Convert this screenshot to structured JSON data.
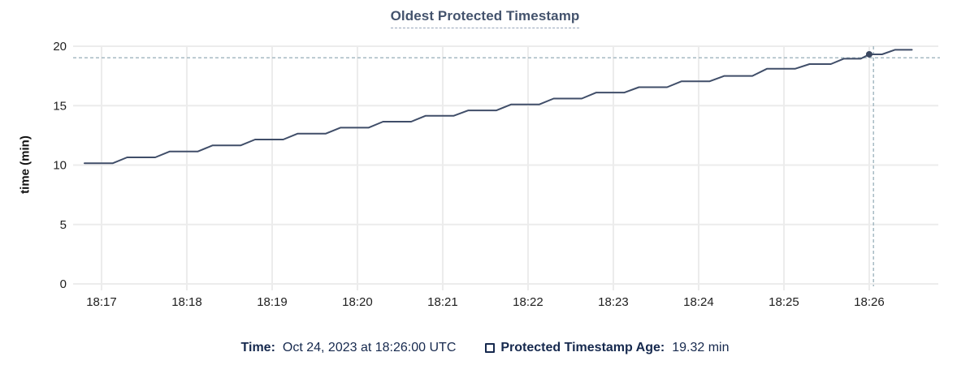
{
  "title": "Oldest Protected Timestamp",
  "colors": {
    "line": "#404e69",
    "point": "#3a4760",
    "grid": "#ececec",
    "crosshair": "#a6bac3",
    "tick_text": "#1e1e1e",
    "title_text": "#44536d",
    "legend_text": "#16294e"
  },
  "legend": {
    "time_label": "Time:",
    "time_value": "Oct 24, 2023 at 18:26:00 UTC",
    "series_label": "Protected Timestamp Age:",
    "series_value": "19.32 min"
  },
  "chart_data": {
    "type": "line",
    "title": "Oldest Protected Timestamp",
    "xlabel": "",
    "ylabel": "time (min)",
    "grid": true,
    "ylim": [
      0,
      20
    ],
    "y_ticks": [
      0,
      5,
      10,
      15,
      20
    ],
    "x_domain": [
      -0.333,
      9.81
    ],
    "x_unit": "minutes after 18:17 UTC",
    "x_ticks": [
      {
        "pos": 0,
        "label": "18:17"
      },
      {
        "pos": 1,
        "label": "18:18"
      },
      {
        "pos": 2,
        "label": "18:19"
      },
      {
        "pos": 3,
        "label": "18:20"
      },
      {
        "pos": 4,
        "label": "18:21"
      },
      {
        "pos": 5,
        "label": "18:22"
      },
      {
        "pos": 6,
        "label": "18:23"
      },
      {
        "pos": 7,
        "label": "18:24"
      },
      {
        "pos": 8,
        "label": "18:25"
      },
      {
        "pos": 9,
        "label": "18:26"
      }
    ],
    "series": [
      {
        "name": "Protected Timestamp Age",
        "unit": "min",
        "points": [
          [
            -0.2,
            10.15
          ],
          [
            0.13,
            10.15
          ],
          [
            0.3,
            10.65
          ],
          [
            0.63,
            10.65
          ],
          [
            0.8,
            11.15
          ],
          [
            1.13,
            11.15
          ],
          [
            1.3,
            11.65
          ],
          [
            1.63,
            11.65
          ],
          [
            1.8,
            12.15
          ],
          [
            2.13,
            12.15
          ],
          [
            2.3,
            12.65
          ],
          [
            2.63,
            12.65
          ],
          [
            2.8,
            13.15
          ],
          [
            3.13,
            13.15
          ],
          [
            3.3,
            13.65
          ],
          [
            3.63,
            13.65
          ],
          [
            3.8,
            14.15
          ],
          [
            4.13,
            14.15
          ],
          [
            4.3,
            14.6
          ],
          [
            4.63,
            14.6
          ],
          [
            4.8,
            15.1
          ],
          [
            5.13,
            15.1
          ],
          [
            5.3,
            15.6
          ],
          [
            5.63,
            15.6
          ],
          [
            5.8,
            16.1
          ],
          [
            6.13,
            16.1
          ],
          [
            6.3,
            16.55
          ],
          [
            6.63,
            16.55
          ],
          [
            6.8,
            17.05
          ],
          [
            7.13,
            17.05
          ],
          [
            7.3,
            17.5
          ],
          [
            7.63,
            17.5
          ],
          [
            7.8,
            18.1
          ],
          [
            8.13,
            18.1
          ],
          [
            8.3,
            18.5
          ],
          [
            8.55,
            18.5
          ],
          [
            8.7,
            18.95
          ],
          [
            8.9,
            18.95
          ],
          [
            9.0,
            19.32
          ],
          [
            9.15,
            19.32
          ],
          [
            9.3,
            19.7
          ],
          [
            9.5,
            19.7
          ]
        ]
      }
    ],
    "hover": {
      "point_x": 9.0,
      "point_y": 19.32,
      "crosshair_x": 9.05,
      "crosshair_y": 19.03,
      "time": "Oct 24, 2023 at 18:26:00 UTC",
      "value": "19.32 min"
    }
  }
}
